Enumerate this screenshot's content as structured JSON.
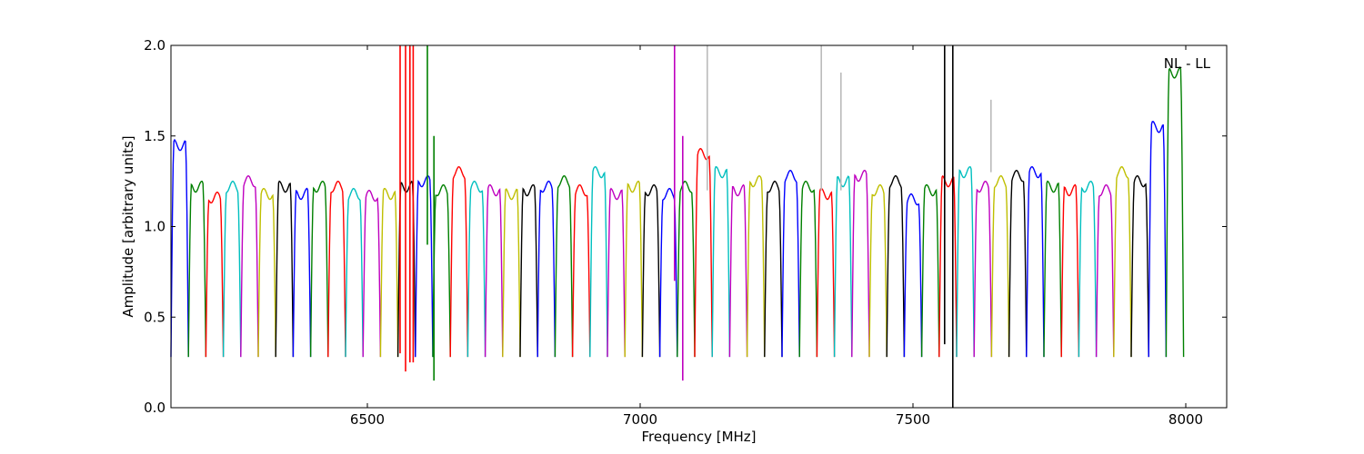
{
  "chart_data": {
    "type": "line",
    "xlabel": "Frequency [MHz]",
    "ylabel": "Amplitude [arbitrary units]",
    "xlim": [
      6140,
      8075
    ],
    "ylim": [
      0.0,
      2.0
    ],
    "xticks": [
      6500,
      7000,
      7500,
      8000
    ],
    "yticks": [
      0.0,
      0.5,
      1.0,
      1.5,
      2.0
    ],
    "xtick_labels": [
      "6500",
      "7000",
      "7500",
      "8000"
    ],
    "ytick_labels": [
      "0.0",
      "0.5",
      "1.0",
      "1.5",
      "2.0"
    ],
    "annotation": "NL - LL",
    "grid": false,
    "background_series": {
      "color": "#bbbbbb"
    },
    "color_cycle": [
      "#0000ff",
      "#008000",
      "#ff0000",
      "#00bfbf",
      "#bf00bf",
      "#bfbf00",
      "#000000"
    ],
    "channel_width_mhz": 32,
    "band_count": 58,
    "band_start_mhz": 6140,
    "band_levels": [
      1.45,
      1.22,
      1.16,
      1.22,
      1.25,
      1.18,
      1.22,
      1.18,
      1.22,
      1.22,
      1.18,
      1.17,
      1.18,
      1.22,
      1.25,
      1.2,
      1.3,
      1.22,
      1.2,
      1.18,
      1.2,
      1.22,
      1.25,
      1.2,
      1.3,
      1.18,
      1.22,
      1.2,
      1.18,
      1.22,
      1.4,
      1.3,
      1.2,
      1.25,
      1.22,
      1.28,
      1.22,
      1.18,
      1.25,
      1.28,
      1.2,
      1.25,
      1.15,
      1.2,
      1.25,
      1.3,
      1.22,
      1.25,
      1.28,
      1.3,
      1.22,
      1.2,
      1.22,
      1.2,
      1.3,
      1.25,
      1.55,
      1.85
    ],
    "band_minimum": 0.28,
    "spikes": [
      {
        "x": 6560,
        "ymin": 0.3,
        "ymax": 2.0,
        "color": "#ff0000"
      },
      {
        "x": 6570,
        "ymin": 0.2,
        "ymax": 2.0,
        "color": "#ff0000"
      },
      {
        "x": 6578,
        "ymin": 0.25,
        "ymax": 2.0,
        "color": "#ff0000"
      },
      {
        "x": 6584,
        "ymin": 0.25,
        "ymax": 2.0,
        "color": "#ff0000"
      },
      {
        "x": 6610,
        "ymin": 0.9,
        "ymax": 2.0,
        "color": "#008000"
      },
      {
        "x": 6622,
        "ymin": 0.15,
        "ymax": 1.5,
        "color": "#008000"
      },
      {
        "x": 7063,
        "ymin": 0.7,
        "ymax": 2.0,
        "color": "#bf00bf"
      },
      {
        "x": 7078,
        "ymin": 0.15,
        "ymax": 1.5,
        "color": "#bf00bf"
      },
      {
        "x": 7558,
        "ymin": 0.35,
        "ymax": 2.0,
        "color": "#000000"
      },
      {
        "x": 7573,
        "ymin": 0.0,
        "ymax": 2.0,
        "color": "#000000"
      },
      {
        "x": 7123,
        "ymin": 1.2,
        "ymax": 2.0,
        "color": "#bbbbbb"
      },
      {
        "x": 7332,
        "ymin": 1.2,
        "ymax": 2.0,
        "color": "#bbbbbb"
      },
      {
        "x": 7368,
        "ymin": 1.2,
        "ymax": 1.85,
        "color": "#bbbbbb"
      },
      {
        "x": 7643,
        "ymin": 1.3,
        "ymax": 1.7,
        "color": "#bbbbbb"
      }
    ]
  }
}
